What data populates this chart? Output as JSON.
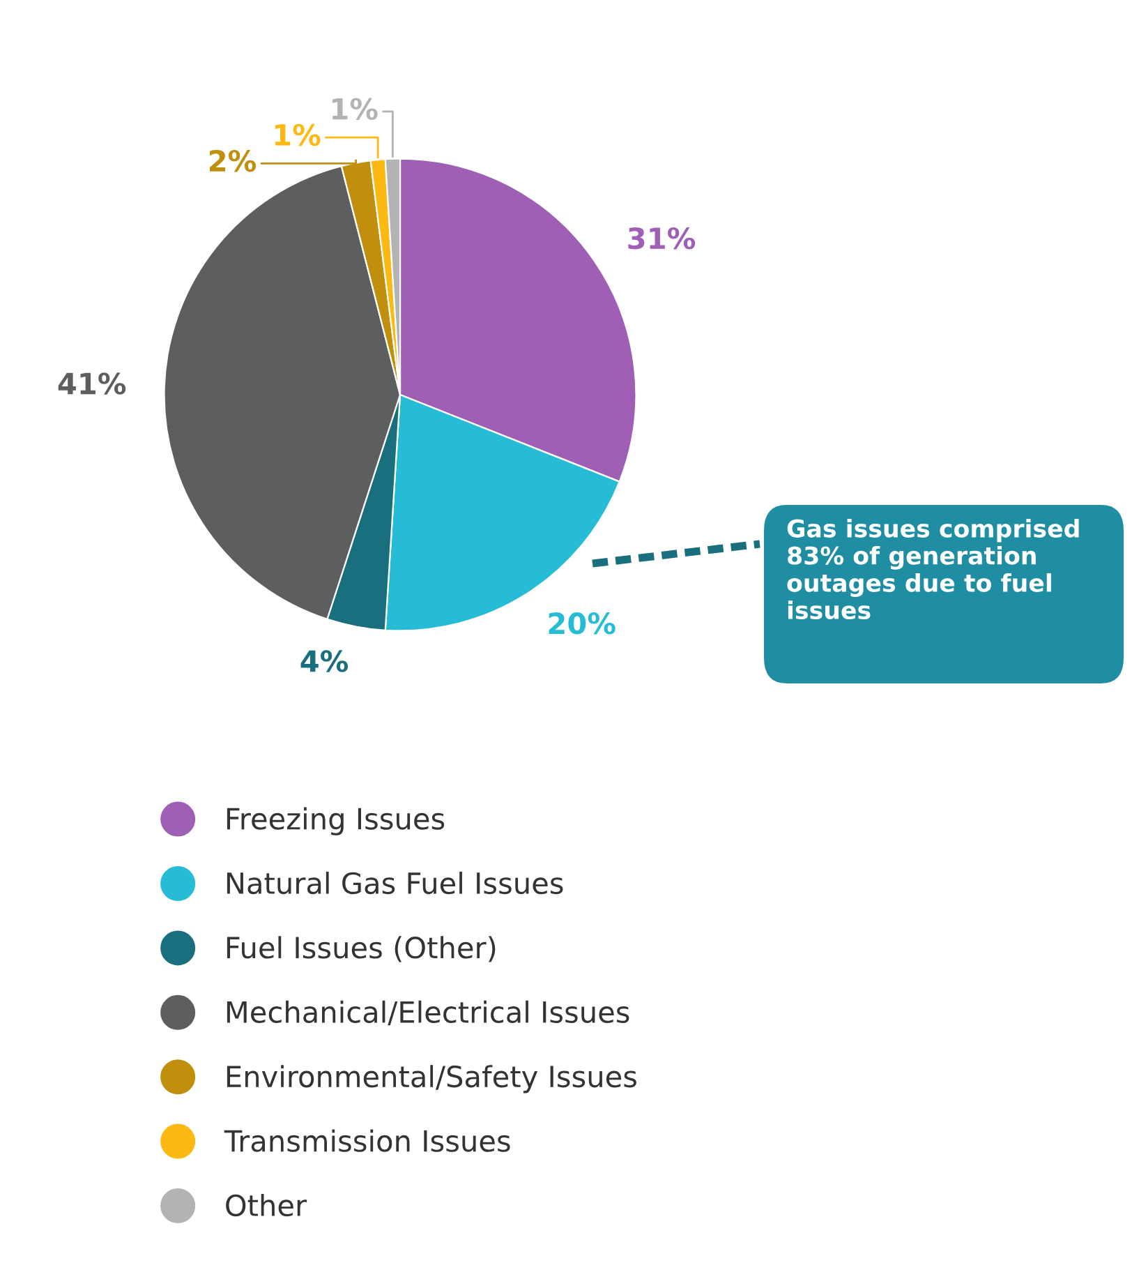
{
  "chart_data": {
    "type": "pie",
    "categories": [
      "Freezing Issues",
      "Natural Gas Fuel Issues",
      "Fuel Issues (Other)",
      "Mechanical/Electrical Issues",
      "Environmental/Safety Issues",
      "Transmission Issues",
      "Other"
    ],
    "values": [
      31,
      20,
      4,
      41,
      2,
      1,
      1
    ],
    "value_labels": [
      "31%",
      "20%",
      "4%",
      "41%",
      "2%",
      "1%",
      "1%"
    ],
    "colors": [
      "#9e5fb4",
      "#27bcd6",
      "#1a6f7f",
      "#5d5e60",
      "#c08f0e",
      "#fdb913",
      "#b3b3b3"
    ],
    "annotations": [
      "Gas issues comprised 83% of generation outages due to fuel issues"
    ],
    "legend": "bottom"
  }
}
